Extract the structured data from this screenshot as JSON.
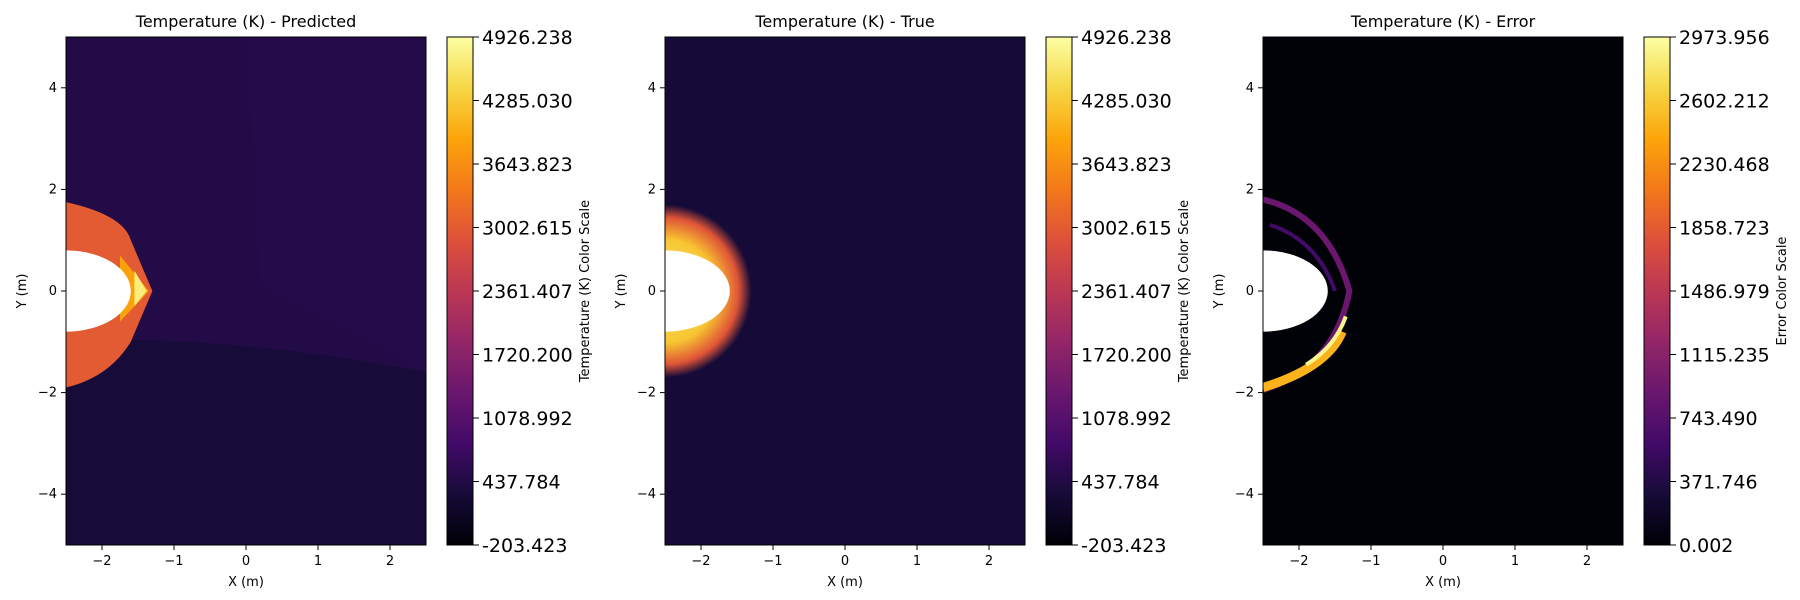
{
  "chart_data": [
    {
      "type": "heatmap",
      "title": "Temperature (K) - Predicted",
      "xlabel": "X (m)",
      "ylabel": "Y (m)",
      "xlim": [
        -2.5,
        2.5
      ],
      "ylim": [
        -5,
        5
      ],
      "x_ticks": [
        "−2",
        "−1",
        "0",
        "1",
        "2"
      ],
      "y_ticks": [
        "−4",
        "−2",
        "0",
        "2",
        "4"
      ],
      "colormap": "inferno",
      "colorbar": {
        "label": "Temperature (K) Color Scale",
        "range": [
          -203.423,
          4926.238
        ],
        "ticks": [
          "-203.423",
          "437.784",
          "1078.992",
          "1720.200",
          "2361.407",
          "3002.615",
          "3643.823",
          "4285.030",
          "4926.238"
        ]
      },
      "features": {
        "background_upper_temperature": 450,
        "background_lower_temperature": 320,
        "shock_layer_temperature": 3000,
        "shock_front_peak_temperature": 4700,
        "shock_extent_y": [
          -1.9,
          1.75
        ]
      }
    },
    {
      "type": "heatmap",
      "title": "Temperature (K) - True",
      "xlabel": "X (m)",
      "ylabel": "Y (m)",
      "xlim": [
        -2.5,
        2.5
      ],
      "ylim": [
        -5,
        5
      ],
      "x_ticks": [
        "−2",
        "−1",
        "0",
        "1",
        "2"
      ],
      "y_ticks": [
        "−4",
        "−2",
        "0",
        "2",
        "4"
      ],
      "colormap": "inferno",
      "colorbar": {
        "label": "Temperature (K) Color Scale",
        "range": [
          -203.423,
          4926.238
        ],
        "ticks": [
          "-203.423",
          "437.784",
          "1078.992",
          "1720.200",
          "2361.407",
          "3002.615",
          "3643.823",
          "4285.030",
          "4926.238"
        ]
      },
      "features": {
        "background_temperature": 300,
        "shock_layer_peak_temperature": 4700,
        "shock_extent_y": [
          -1.9,
          1.9
        ]
      }
    },
    {
      "type": "heatmap",
      "title": "Temperature (K) - Error",
      "xlabel": "X (m)",
      "ylabel": "Y (m)",
      "xlim": [
        -2.5,
        2.5
      ],
      "ylim": [
        -5,
        5
      ],
      "x_ticks": [
        "−2",
        "−1",
        "0",
        "1",
        "2"
      ],
      "y_ticks": [
        "−4",
        "−2",
        "0",
        "2",
        "4"
      ],
      "colormap": "inferno",
      "colorbar": {
        "label": "Error Color Scale",
        "range": [
          0.002,
          2973.956
        ],
        "ticks": [
          "0.002",
          "371.746",
          "743.490",
          "1115.235",
          "1486.979",
          "1858.723",
          "2230.468",
          "2602.212",
          "2973.956"
        ]
      },
      "features": {
        "background_error": 20,
        "max_error_band_y": [
          -1.9,
          -0.8
        ],
        "max_error": 2900
      }
    }
  ]
}
